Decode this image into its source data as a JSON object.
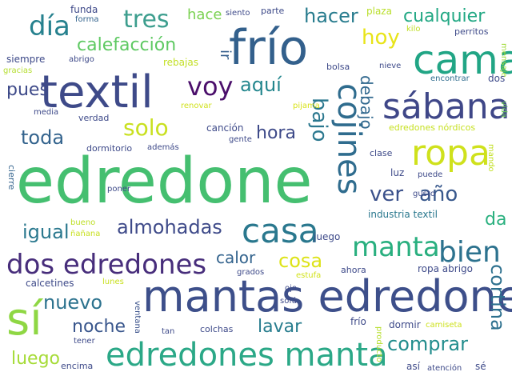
{
  "words": {
    "edredone": "edredone",
    "mantas_edredone": "mantas edredone",
    "edredones_manta": "edredones manta",
    "frio": "frío",
    "cama": "cama",
    "textil": "textil",
    "sabana": "sábana",
    "ropa": "ropa",
    "cojines": "cojines",
    "casa": "casa",
    "si": "sí",
    "dos_edredones": "dos edredones",
    "manta": "manta",
    "bien": "bien",
    "voy": "voy",
    "dia": "día",
    "tres": "tres",
    "hacer": "hacer",
    "cualquier": "cualquier",
    "hoy": "hoy",
    "calefaccion": "calefacción",
    "aqui": "aquí",
    "bajo": "bajo",
    "debajo": "debajo",
    "solo": "solo",
    "hora": "hora",
    "ver": "ver",
    "ano": "año",
    "almohadas": "almohadas",
    "igual": "igual",
    "toda": "toda",
    "pues": "pues",
    "comprar": "comprar",
    "lavar": "lavar",
    "noche": "noche",
    "nuevo": "nuevo",
    "luego": "luego",
    "cosa": "cosa",
    "calor": "calor",
    "cortina": "cortina",
    "da": "da",
    "hace": "hace",
    "ir": "ir",
    "funda": "funda",
    "forma": "forma",
    "siento": "siento",
    "parte": "parte",
    "plaza": "plaza",
    "kilo": "kilo",
    "perritos": "perritos",
    "mensaje": "mensaje",
    "siempre": "siempre",
    "abrigo": "abrigo",
    "gracias": "gracias",
    "rebajas": "rebajas",
    "bolsa": "bolsa",
    "nieve": "nieve",
    "encontrar": "encontrar",
    "dos": "dos",
    "media": "media",
    "verdad": "verdad",
    "renovar": "renovar",
    "pijama": "pijama",
    "vida": "vida",
    "edredones_nordicos": "edredones nórdicos",
    "cancion": "canción",
    "gente": "gente",
    "dormitorio": "dormitorio",
    "ademas": "además",
    "clase": "clase",
    "mando": "mando",
    "luz": "luz",
    "puede": "puede",
    "cierre": "cierre",
    "poner": "poner",
    "gusto": "gusto",
    "industria_textil": "industria textil",
    "bueno": "bueno",
    "nanana": "ñañana",
    "juego": "juego",
    "ropa_abrigo": "ropa abrigo",
    "ahora": "ahora",
    "calcetines": "calcetines",
    "lunes": "lunes",
    "grados": "grados",
    "ojo": "ojo",
    "sofa": "sofá",
    "ventana": "ventana",
    "frio_small": "frío",
    "dormir": "dormir",
    "camiseta": "camiseta",
    "tan": "tan",
    "colchas": "colchas",
    "tener": "tener",
    "encima": "encima",
    "asi": "así",
    "atencion": "atención",
    "se": "sé",
    "producto": "producto",
    "estufa": "estufa"
  }
}
